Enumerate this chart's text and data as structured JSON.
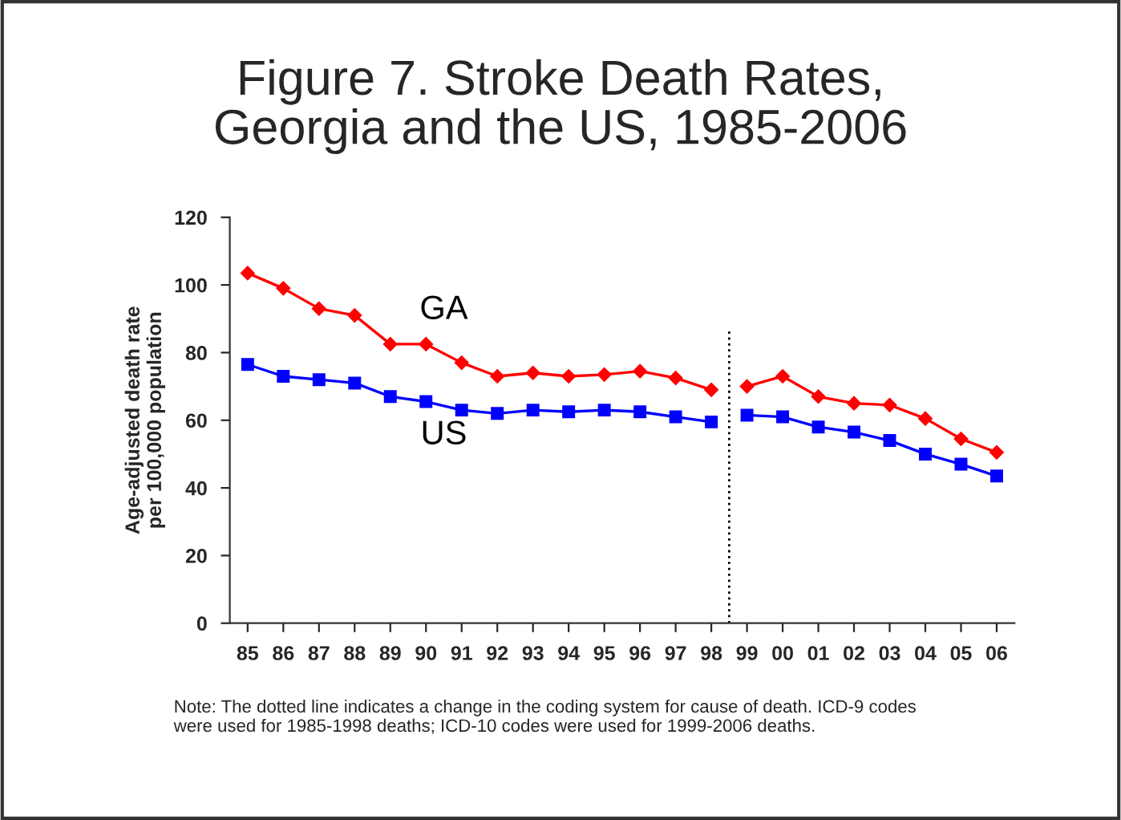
{
  "chart_data": {
    "type": "line",
    "title": "Figure 7. Stroke Death Rates,\nGeorgia and the US, 1985-2006",
    "ylabel": "Age-adjusted death rate\nper 100,000 population",
    "series": [
      {
        "name": "GA",
        "color": "#ff0000",
        "marker": "diamond",
        "x": [
          1985,
          1986,
          1987,
          1988,
          1989,
          1990,
          1991,
          1992,
          1993,
          1994,
          1995,
          1996,
          1997,
          1998
        ],
        "values": [
          103.5,
          99,
          93,
          91,
          82.5,
          82.5,
          77,
          73,
          74,
          73,
          73.5,
          74.5,
          72.5,
          69
        ]
      },
      {
        "color": "#ff0000",
        "marker": "diamond",
        "x": [
          1999,
          2000,
          2001,
          2002,
          2003,
          2004,
          2005,
          2006
        ],
        "values": [
          70,
          73,
          67,
          65,
          64.5,
          60.5,
          54.5,
          50.5
        ]
      },
      {
        "name": "US",
        "color": "#0000ff",
        "marker": "square",
        "x": [
          1985,
          1986,
          1987,
          1988,
          1989,
          1990,
          1991,
          1992,
          1993,
          1994,
          1995,
          1996,
          1997,
          1998
        ],
        "values": [
          76.5,
          73,
          72,
          71,
          67,
          65.5,
          63,
          62,
          63,
          62.5,
          63,
          62.5,
          61,
          59.5
        ]
      },
      {
        "color": "#0000ff",
        "marker": "square",
        "x": [
          1999,
          2000,
          2001,
          2002,
          2003,
          2004,
          2005,
          2006
        ],
        "values": [
          61.5,
          61,
          58,
          56.5,
          54,
          50,
          47,
          43.5
        ]
      }
    ],
    "xlim": [
      1984.5,
      2006.5
    ],
    "xticks": [
      {
        "value": 1985,
        "label": "85"
      },
      {
        "value": 1986,
        "label": "86"
      },
      {
        "value": 1987,
        "label": "87"
      },
      {
        "value": 1988,
        "label": "88"
      },
      {
        "value": 1989,
        "label": "89"
      },
      {
        "value": 1990,
        "label": "90"
      },
      {
        "value": 1991,
        "label": "91"
      },
      {
        "value": 1992,
        "label": "92"
      },
      {
        "value": 1993,
        "label": "93"
      },
      {
        "value": 1994,
        "label": "94"
      },
      {
        "value": 1995,
        "label": "95"
      },
      {
        "value": 1996,
        "label": "96"
      },
      {
        "value": 1997,
        "label": "97"
      },
      {
        "value": 1998,
        "label": "98"
      },
      {
        "value": 1999,
        "label": "99"
      },
      {
        "value": 2000,
        "label": "00"
      },
      {
        "value": 2001,
        "label": "01"
      },
      {
        "value": 2002,
        "label": "02"
      },
      {
        "value": 2003,
        "label": "03"
      },
      {
        "value": 2004,
        "label": "04"
      },
      {
        "value": 2005,
        "label": "05"
      },
      {
        "value": 2006,
        "label": "06"
      }
    ],
    "ylim": [
      0,
      120
    ],
    "yticks": [
      0,
      20,
      40,
      60,
      80,
      100,
      120
    ],
    "ref_lines": [
      {
        "axis": "x",
        "value": 1998.5,
        "color": "#000000",
        "line_style": "dotted"
      }
    ],
    "grid": false,
    "legend": false,
    "annotations": [
      "Note: The dotted line indicates a change in the coding system for cause of death. ICD-9 codes were used for 1985-1998 deaths; ICD-10 codes were used for 1999-2006 deaths."
    ]
  }
}
